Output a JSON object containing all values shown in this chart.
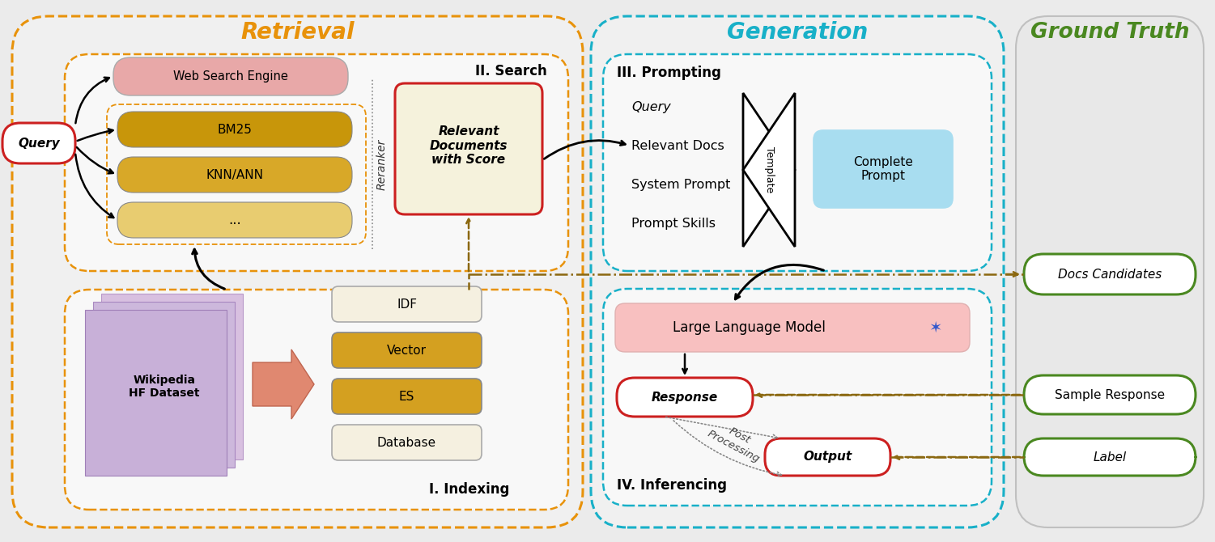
{
  "bg_color": "#ebebeb",
  "color_retrieval": "#E8920A",
  "color_generation": "#18B0C8",
  "color_ground_truth": "#4A8820",
  "title_retrieval": "Retrieval",
  "title_generation": "Generation",
  "title_ground_truth": "Ground Truth",
  "search_label": "II. Search",
  "indexing_label": "I. Indexing",
  "prompting_label": "III. Prompting",
  "inferencing_label": "IV. Inferencing",
  "query_label": "Query",
  "web_search_label": "Web Search Engine",
  "bm25_label": "BM25",
  "knn_label": "KNN/ANN",
  "dots_label": "...",
  "reranker_label": "Reranker",
  "relevant_docs_label": "Relevant\nDocuments\nwith Score",
  "wikipedia_label": "Wikipedia\nHF Dataset",
  "idf_label": "IDF",
  "vector_label": "Vector",
  "es_label": "ES",
  "database_label": "Database",
  "prompt_query_label": "Query",
  "relevant_docs_prompt_label": "Relevant Docs",
  "system_prompt_label": "System Prompt",
  "prompt_skills_label": "Prompt Skills",
  "template_label": "Template",
  "complete_prompt_label": "Complete\nPrompt",
  "llm_label": "Large Language Model",
  "llm_star": "✶",
  "response_label": "Response",
  "post_processing_label": "Post\nProcessing",
  "output_label": "Output",
  "docs_candidates_label": "Docs Candidates",
  "sample_response_label": "Sample Response",
  "label_label": "Label"
}
